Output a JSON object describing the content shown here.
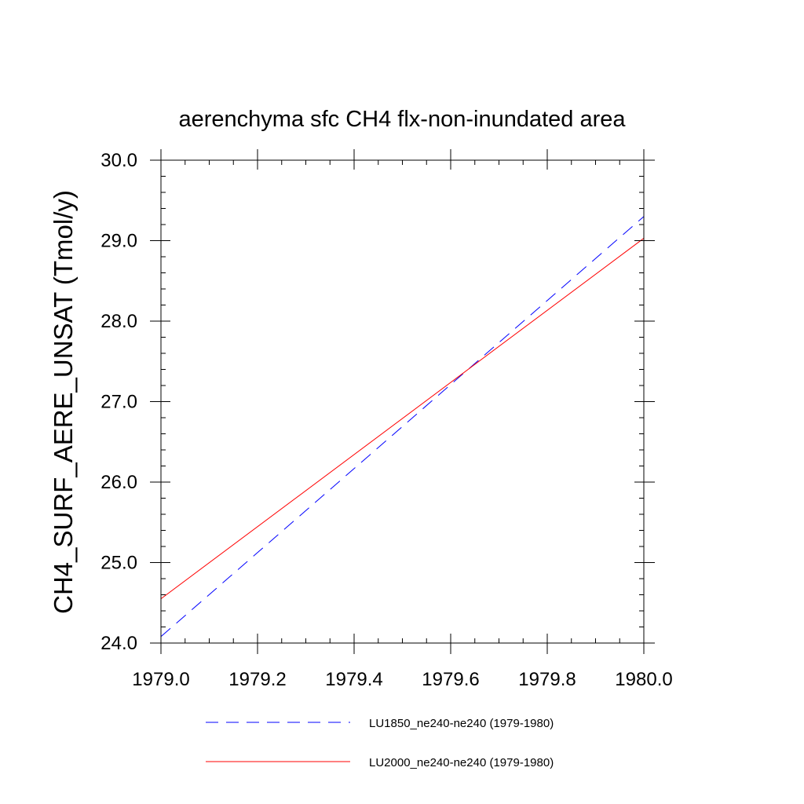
{
  "chart_data": {
    "type": "line",
    "title": "aerenchyma sfc CH4 flx-non-inundated area",
    "xlabel": "",
    "ylabel": "CH4_SURF_AERE_UNSAT  (Tmol/y)",
    "xlim": [
      1979.0,
      1980.0
    ],
    "ylim": [
      24.0,
      30.0
    ],
    "x_ticks": [
      "1979.0",
      "1979.2",
      "1979.4",
      "1979.6",
      "1979.8",
      "1980.0"
    ],
    "y_ticks": [
      "24.0",
      "25.0",
      "26.0",
      "27.0",
      "28.0",
      "29.0",
      "30.0"
    ],
    "grid": false,
    "legend_position": "bottom",
    "series": [
      {
        "name": "LU1850_ne240-ne240 (1979-1980)",
        "color": "#0000ff",
        "line_style": "dashed",
        "x": [
          1979.0,
          1980.0
        ],
        "y": [
          24.08,
          29.3
        ]
      },
      {
        "name": "LU2000_ne240-ne240 (1979-1980)",
        "color": "#ff0000",
        "line_style": "solid",
        "x": [
          1979.0,
          1980.0
        ],
        "y": [
          24.55,
          29.03
        ]
      }
    ]
  }
}
